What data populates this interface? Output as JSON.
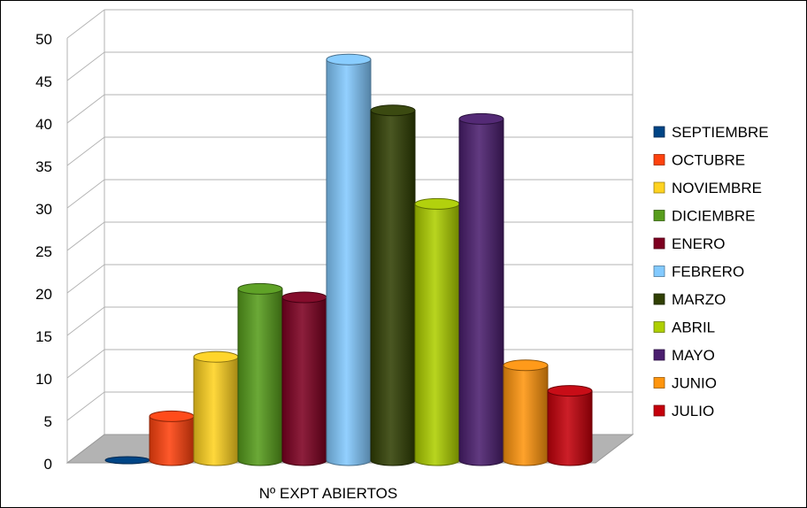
{
  "chart_data": {
    "type": "bar",
    "style": "3d-cylinder",
    "xlabel": "Nº EXPT ABIERTOS",
    "ylabel": "",
    "ylim": [
      0,
      50
    ],
    "yticks": [
      0,
      5,
      10,
      15,
      20,
      25,
      30,
      35,
      40,
      45,
      50
    ],
    "grid": true,
    "legend_position": "right",
    "categories": [
      "Nº EXPT ABIERTOS"
    ],
    "series": [
      {
        "name": "SEPTIEMBRE",
        "values": [
          0
        ],
        "color": "#004586"
      },
      {
        "name": "OCTUBRE",
        "values": [
          6
        ],
        "color": "#ff420e"
      },
      {
        "name": "NOVIEMBRE",
        "values": [
          13
        ],
        "color": "#ffd320"
      },
      {
        "name": "DICIEMBRE",
        "values": [
          21
        ],
        "color": "#579d1c"
      },
      {
        "name": "ENERO",
        "values": [
          20
        ],
        "color": "#7e0021"
      },
      {
        "name": "FEBRERO",
        "values": [
          48
        ],
        "color": "#83caff"
      },
      {
        "name": "MARZO",
        "values": [
          42
        ],
        "color": "#314004"
      },
      {
        "name": "ABRIL",
        "values": [
          31
        ],
        "color": "#aecf00"
      },
      {
        "name": "MAYO",
        "values": [
          41
        ],
        "color": "#4b1f6f"
      },
      {
        "name": "JUNIO",
        "values": [
          12
        ],
        "color": "#ff950e"
      },
      {
        "name": "JULIO",
        "values": [
          9
        ],
        "color": "#c5000b"
      }
    ]
  }
}
